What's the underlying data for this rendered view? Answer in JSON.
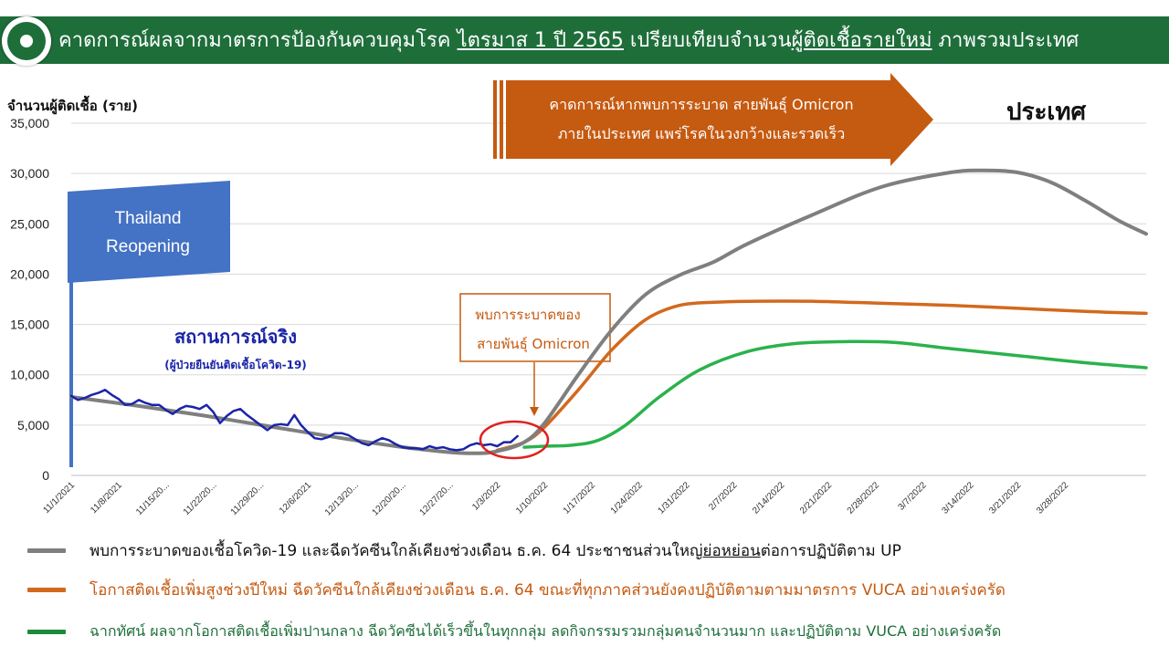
{
  "header": {
    "title_a": "คาดการณ์ผลจากมาตรการป้องกันควบคุมโรค ",
    "title_b": "ไตรมาส 1 ปี 2565",
    "title_c": " เปรียบเทียบจำนวน",
    "title_d": "ผู้ติดเชื้อรายใหม่",
    "title_e": " ภาพรวมประเทศ"
  },
  "region_label": "ประเทศ",
  "annotations": {
    "omicron_arrow_line1": "คาดการณ์หากพบการระบาด สายพันธุ์ Omicron",
    "omicron_arrow_line2": "ภายในประเทศ แพร่โรคในวงกว้างและรวดเร็ว",
    "reopening_line1": "Thailand",
    "reopening_line2": "Reopening",
    "actual_label": "สถานการณ์จริง",
    "actual_sublabel": "(ผู้ป่วยยืนยันติดเชื้อโควิด-19)",
    "found_line1": "พบการระบาดของ",
    "found_line2": "สายพันธุ์ Omicron"
  },
  "legend": {
    "gray_a": "พบการระบาดของเชื้อโควิด-19 และฉีดวัคซีนใกล้เคียงช่วงเดือน ธ.ค. 64 ประชาชนส่วนใหญ่",
    "gray_b": "ย่อหย่อน",
    "gray_c": "ต่อการปฏิบัติตาม UP",
    "orange": "โอกาสติดเชื้อเพิ่มสูงช่วงปีใหม่ ฉีดวัคซีนใกล้เคียงช่วงเดือน ธ.ค. 64 ขณะที่ทุกภาคส่วนยังคงปฏิบัติตามตามมาตรการ VUCA อย่างเคร่งครัด",
    "green": "ฉากทัศน์ ผลจากโอกาสติดเชื้อเพิ่มปานกลาง ฉีดวัคซีนได้เร็วขึ้นในทุกกลุ่ม ลดกิจกรรมรวมกลุ่มคนจำนวนมาก และปฏิบัติตาม VUCA อย่างเคร่งครัด"
  },
  "colors": {
    "header_bg": "#1e6e3a",
    "actual": "#1a24a8",
    "gray": "#7f7f7f",
    "orange": "#d2691e",
    "green": "#2bb24c",
    "arrow": "#c55a11",
    "flag": "#4472c4",
    "circle": "#e02020",
    "found_box": "#c55a11"
  },
  "chart_data": {
    "type": "line",
    "ylabel": "จำนวนผู้ติดเชื้อ (ราย)",
    "ylim": [
      0,
      35000
    ],
    "y_ticks": [
      "0",
      "5,000",
      "10,000",
      "15,000",
      "20,000",
      "25,000",
      "30,000",
      "35,000"
    ],
    "y_tick_values": [
      0,
      5000,
      10000,
      15000,
      20000,
      25000,
      30000,
      35000
    ],
    "x_ticks": [
      "11/1/2021",
      "11/8/2021",
      "11/15/20...",
      "11/22/20...",
      "11/29/20...",
      "12/6/2021",
      "12/13/20...",
      "12/20/20...",
      "12/27/20...",
      "1/3/2022",
      "1/10/2022",
      "1/17/2022",
      "1/24/2022",
      "1/31/2022",
      "2/7/2022",
      "2/14/2022",
      "2/21/2022",
      "2/28/2022",
      "3/7/2022",
      "3/14/2022",
      "3/21/2022",
      "3/28/2022"
    ],
    "x_range_days": [
      0,
      154
    ],
    "grid": true,
    "series": [
      {
        "name": "สถานการณ์จริง",
        "key": "actual",
        "points": [
          [
            0,
            7900
          ],
          [
            1,
            7500
          ],
          [
            2,
            7700
          ],
          [
            3,
            8000
          ],
          [
            4,
            8200
          ],
          [
            5,
            8500
          ],
          [
            6,
            8000
          ],
          [
            7,
            7600
          ],
          [
            8,
            7000
          ],
          [
            9,
            7100
          ],
          [
            10,
            7500
          ],
          [
            11,
            7200
          ],
          [
            12,
            7000
          ],
          [
            13,
            7000
          ],
          [
            14,
            6500
          ],
          [
            15,
            6100
          ],
          [
            16,
            6600
          ],
          [
            17,
            6900
          ],
          [
            18,
            6800
          ],
          [
            19,
            6600
          ],
          [
            20,
            7000
          ],
          [
            21,
            6300
          ],
          [
            22,
            5200
          ],
          [
            23,
            5900
          ],
          [
            24,
            6400
          ],
          [
            25,
            6600
          ],
          [
            26,
            6000
          ],
          [
            27,
            5500
          ],
          [
            28,
            5000
          ],
          [
            29,
            4500
          ],
          [
            30,
            5000
          ],
          [
            31,
            5100
          ],
          [
            32,
            5000
          ],
          [
            33,
            6000
          ],
          [
            34,
            5000
          ],
          [
            35,
            4300
          ],
          [
            36,
            3700
          ],
          [
            37,
            3600
          ],
          [
            38,
            3800
          ],
          [
            39,
            4200
          ],
          [
            40,
            4200
          ],
          [
            41,
            4000
          ],
          [
            42,
            3600
          ],
          [
            43,
            3200
          ],
          [
            44,
            3000
          ],
          [
            45,
            3400
          ],
          [
            46,
            3700
          ],
          [
            47,
            3500
          ],
          [
            48,
            3100
          ],
          [
            49,
            2800
          ],
          [
            50,
            2700
          ],
          [
            51,
            2700
          ],
          [
            52,
            2600
          ],
          [
            53,
            2900
          ],
          [
            54,
            2700
          ],
          [
            55,
            2800
          ],
          [
            56,
            2600
          ],
          [
            57,
            2500
          ],
          [
            58,
            2600
          ],
          [
            59,
            3000
          ],
          [
            60,
            3200
          ],
          [
            61,
            3000
          ],
          [
            62,
            3100
          ],
          [
            63,
            2900
          ],
          [
            64,
            3300
          ],
          [
            65,
            3300
          ],
          [
            66,
            3900
          ]
        ]
      },
      {
        "name": "พบการระบาดของเชื้อโควิด-19 และฉีดวัคซีนใกล้เคียงช่วงเดือน ธ.ค. 64 ประชาชนส่วนใหญ่ย่อหย่อนต่อการปฏิบัติตาม UP",
        "key": "gray",
        "points": [
          [
            0,
            7800
          ],
          [
            10,
            6900
          ],
          [
            20,
            5900
          ],
          [
            30,
            4800
          ],
          [
            40,
            3700
          ],
          [
            48,
            2900
          ],
          [
            56,
            2300
          ],
          [
            60,
            2200
          ],
          [
            63,
            2400
          ],
          [
            67,
            3300
          ],
          [
            70,
            5200
          ],
          [
            75,
            10000
          ],
          [
            80,
            14500
          ],
          [
            85,
            18000
          ],
          [
            90,
            19900
          ],
          [
            95,
            21200
          ],
          [
            100,
            23000
          ],
          [
            110,
            26000
          ],
          [
            120,
            28700
          ],
          [
            130,
            30100
          ],
          [
            135,
            30300
          ],
          [
            140,
            30100
          ],
          [
            145,
            29100
          ],
          [
            150,
            27300
          ],
          [
            155,
            25300
          ],
          [
            159,
            24000
          ]
        ]
      },
      {
        "name": "โอกาสติดเชื้อเพิ่มสูงช่วงปีใหม่ ฉีดวัคซีนใกล้เคียงช่วงเดือน ธ.ค. 64 ขณะที่ทุกภาคส่วนยังคงปฏิบัติตามตามมาตรการ VUCA อย่างเคร่งครัด",
        "key": "orange",
        "points": [
          [
            63,
            2500
          ],
          [
            67,
            3300
          ],
          [
            70,
            4800
          ],
          [
            75,
            8500
          ],
          [
            80,
            12500
          ],
          [
            85,
            15500
          ],
          [
            90,
            16900
          ],
          [
            95,
            17200
          ],
          [
            100,
            17300
          ],
          [
            110,
            17300
          ],
          [
            120,
            17100
          ],
          [
            130,
            16900
          ],
          [
            140,
            16600
          ],
          [
            150,
            16300
          ],
          [
            159,
            16100
          ]
        ]
      },
      {
        "name": "ฉากทัศน์ ผลจากโอกาสติดเชื้อเพิ่มปานกลาง ฉีดวัคซีนได้เร็วขึ้นในทุกกลุ่ม ลดกิจกรรมรวมกลุ่มคนจำนวนมาก และปฏิบัติตาม VUCA อย่างเคร่งครัด",
        "key": "green",
        "points": [
          [
            67,
            2800
          ],
          [
            70,
            2900
          ],
          [
            74,
            3000
          ],
          [
            78,
            3500
          ],
          [
            82,
            5000
          ],
          [
            87,
            7800
          ],
          [
            93,
            10500
          ],
          [
            100,
            12300
          ],
          [
            107,
            13100
          ],
          [
            115,
            13300
          ],
          [
            122,
            13200
          ],
          [
            130,
            12600
          ],
          [
            140,
            11900
          ],
          [
            150,
            11200
          ],
          [
            159,
            10700
          ]
        ]
      }
    ]
  }
}
